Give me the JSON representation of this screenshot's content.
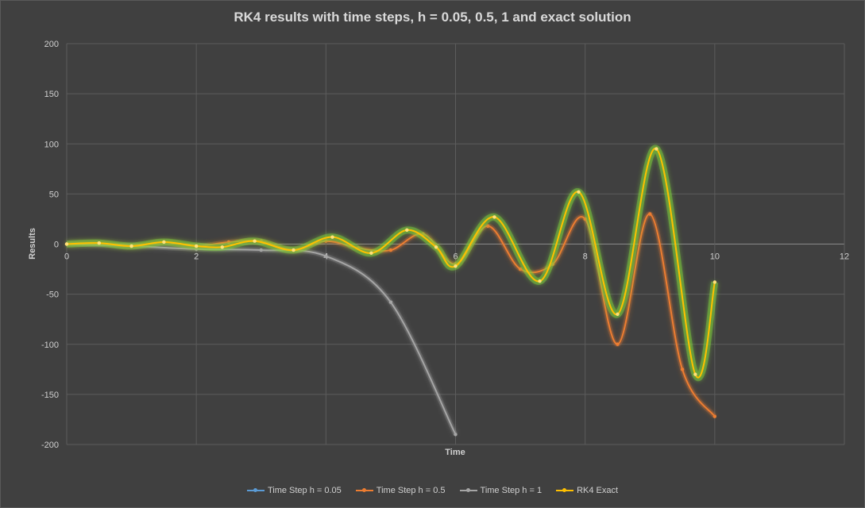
{
  "chart_data": {
    "type": "line",
    "title": "RK4 results with time steps, h = 0.05, 0.5, 1 and  exact solution",
    "xlabel": "Time",
    "ylabel": "Results",
    "xlim": [
      0,
      12
    ],
    "ylim": [
      -200,
      200
    ],
    "x_ticks": [
      0,
      2,
      4,
      6,
      8,
      10,
      12
    ],
    "y_ticks": [
      200,
      150,
      100,
      50,
      0,
      -50,
      -100,
      -150,
      -200
    ],
    "grid": true,
    "legend_position": "bottom",
    "series": [
      {
        "name": "Time Step h = 0.05",
        "color": "#5b9bd5",
        "x": [
          0,
          10
        ],
        "y": [
          0,
          0
        ]
      },
      {
        "name": "Time Step h = 0.5",
        "color": "#ed7d31",
        "x": [
          0,
          0.5,
          1,
          1.5,
          2,
          2.5,
          3,
          3.5,
          4,
          4.5,
          5,
          5.5,
          6,
          6.5,
          7,
          7.5,
          8,
          8.5,
          9,
          9.5,
          10
        ],
        "y": [
          0,
          1,
          -2,
          2,
          -2,
          2,
          3,
          -6,
          3,
          -4,
          -6,
          10,
          -20,
          18,
          -25,
          -20,
          25,
          -100,
          30,
          -125,
          -172
        ]
      },
      {
        "name": "Time Step h = 1",
        "color": "#a5a5a5",
        "x": [
          0,
          1,
          2,
          3,
          4,
          5,
          6
        ],
        "y": [
          0,
          -2,
          -5,
          -6,
          -12,
          -58,
          -190
        ]
      },
      {
        "name": "RK4 Exact",
        "color": "#ffc000",
        "x": [
          0,
          0.5,
          1,
          1.5,
          2,
          2.4,
          2.9,
          3.5,
          4.1,
          4.7,
          5.25,
          5.7,
          6.0,
          6.6,
          7.3,
          7.9,
          8.5,
          9.1,
          9.7,
          10.0
        ],
        "y": [
          0,
          1,
          -2,
          2,
          -2,
          -3,
          3,
          -6,
          7,
          -9,
          14,
          -3,
          -22,
          27,
          -37,
          52,
          -70,
          95,
          -130,
          -38
        ]
      }
    ]
  }
}
